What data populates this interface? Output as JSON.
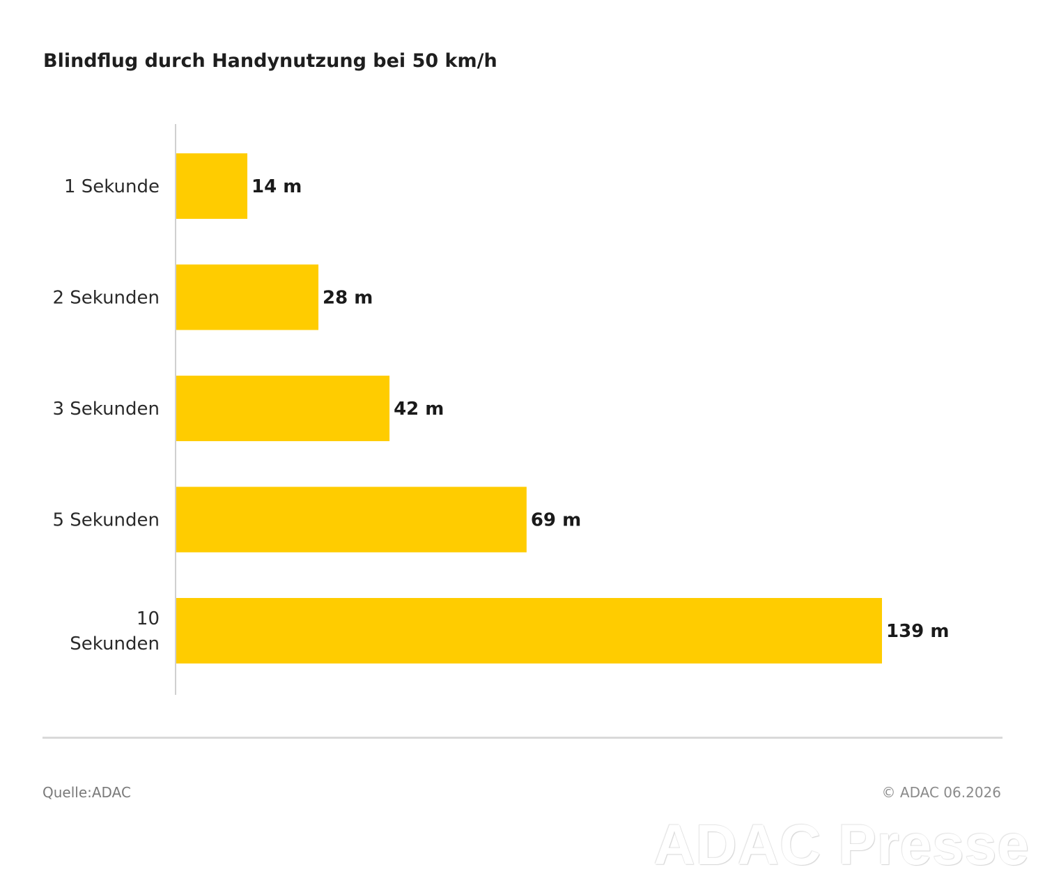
{
  "chart_data": {
    "type": "bar",
    "orientation": "horizontal",
    "title": "Blindflug durch Handynutzung bei 50 km/h",
    "categories": [
      "1 Sekunde",
      "2 Sekunden",
      "3 Sekunden",
      "5 Sekunden",
      "10 Sekunden"
    ],
    "category_label_lines": [
      [
        "1 Sekunde"
      ],
      [
        "2 Sekunden"
      ],
      [
        "3 Sekunden"
      ],
      [
        "5 Sekunden"
      ],
      [
        "10",
        "Sekunden"
      ]
    ],
    "values": [
      14,
      28,
      42,
      69,
      139
    ],
    "value_labels": [
      "14 m",
      "28 m",
      "42 m",
      "69 m",
      "139 m"
    ],
    "unit": "m",
    "xlim": [
      0,
      139
    ],
    "grid": false,
    "legend": "none",
    "bar_color": "#FFCC00",
    "axis_color": "#d0d0d0"
  },
  "footer": {
    "source": "Quelle:ADAC",
    "copyright": "© ADAC 06.2026"
  },
  "watermark": "ADAC Presse"
}
